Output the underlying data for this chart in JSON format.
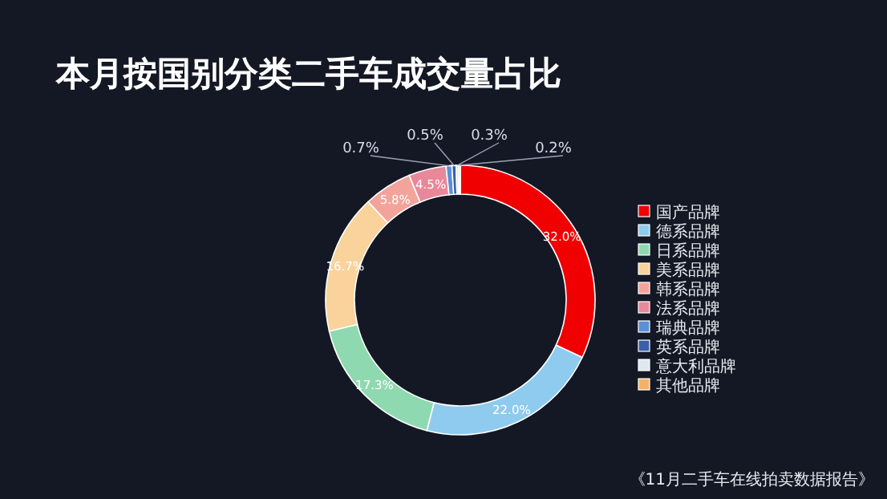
{
  "chart_data": {
    "type": "donut",
    "title": "本月按国别分类二手车成交量占比",
    "categories": [
      "国产品牌",
      "德系品牌",
      "日系品牌",
      "美系品牌",
      "韩系品牌",
      "法系品牌",
      "瑞典品牌",
      "英系品牌",
      "意大利品牌",
      "其他品牌"
    ],
    "values": [
      32.0,
      22.0,
      17.3,
      16.7,
      5.8,
      4.5,
      0.7,
      0.5,
      0.3,
      0.2
    ],
    "colors": [
      "#f00000",
      "#8ecbee",
      "#8fd9b0",
      "#f9d39b",
      "#f2a49a",
      "#e9889a",
      "#5b8fd6",
      "#3a5fa8",
      "#dfe8f0",
      "#f4b266"
    ],
    "value_labels": [
      "32.0%",
      "22.0%",
      "17.3%",
      "16.7%",
      "5.8%",
      "4.5%",
      "0.7%",
      "0.5%",
      "0.3%",
      "0.2%"
    ],
    "legend": "right",
    "annotations": [
      "《11月二手车在线拍卖数据报告》"
    ]
  }
}
